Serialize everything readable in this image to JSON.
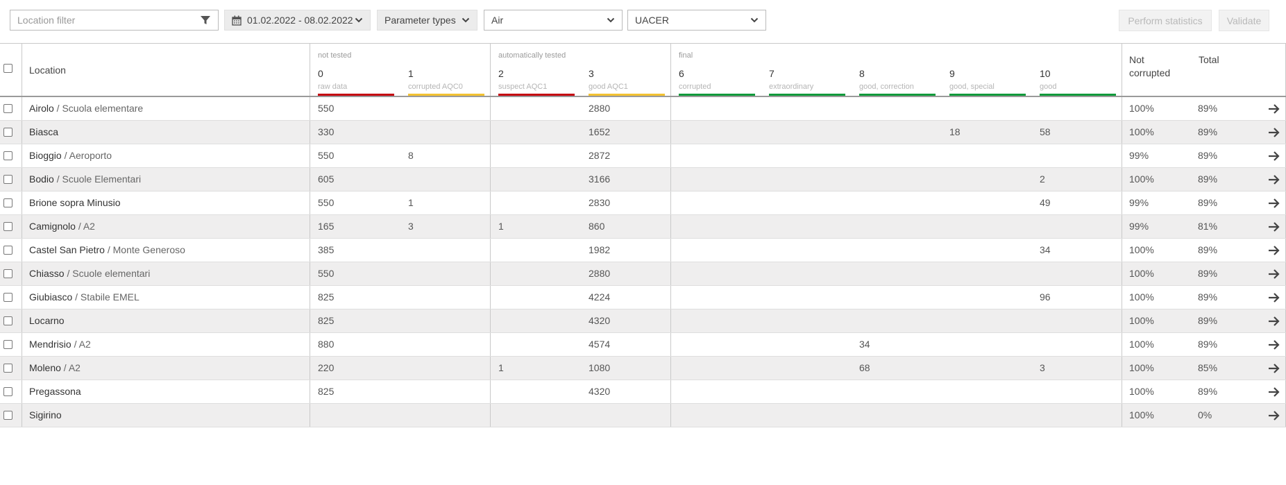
{
  "toolbar": {
    "location_filter_placeholder": "Location filter",
    "date_range": "01.02.2022 - 08.02.2022",
    "parameter_types": "Parameter types",
    "medium": "Air",
    "parameter": "UACER",
    "perform_statistics": "Perform statistics",
    "validate": "Validate"
  },
  "header": {
    "location": "Location",
    "groups": {
      "not_tested": "not tested",
      "auto_tested": "automatically tested",
      "final": "final"
    },
    "classes": [
      {
        "num": "0",
        "label": "raw data",
        "color": "#c4000f"
      },
      {
        "num": "1",
        "label": "corrupted AQC0",
        "color": "#f3c231"
      },
      {
        "num": "2",
        "label": "suspect AQC1",
        "color": "#c4000f"
      },
      {
        "num": "3",
        "label": "good AQC1",
        "color": "#f3c231"
      },
      {
        "num": "6",
        "label": "corrupted",
        "color": "#0f9a3a"
      },
      {
        "num": "7",
        "label": "extraordinary",
        "color": "#0f9a3a"
      },
      {
        "num": "8",
        "label": "good, correction",
        "color": "#0f9a3a"
      },
      {
        "num": "9",
        "label": "good, special",
        "color": "#0f9a3a"
      },
      {
        "num": "10",
        "label": "good",
        "color": "#0f9a3a"
      }
    ],
    "not_corrupted": "Not corrupted",
    "not_corrupted_l1": "Not",
    "not_corrupted_l2": "corrupted",
    "total": "Total"
  },
  "rows": [
    {
      "name": "Airolo",
      "sub": "Scuola elementare",
      "c": [
        "550",
        "",
        "",
        "2880",
        "",
        "",
        "",
        "",
        ""
      ],
      "nc": "100%",
      "total": "89%"
    },
    {
      "name": "Biasca",
      "sub": "",
      "c": [
        "330",
        "",
        "",
        "1652",
        "",
        "",
        "",
        "18",
        "58"
      ],
      "nc": "100%",
      "total": "89%"
    },
    {
      "name": "Bioggio",
      "sub": "Aeroporto",
      "c": [
        "550",
        "8",
        "",
        "2872",
        "",
        "",
        "",
        "",
        ""
      ],
      "nc": "99%",
      "total": "89%"
    },
    {
      "name": "Bodio",
      "sub": "Scuole Elementari",
      "c": [
        "605",
        "",
        "",
        "3166",
        "",
        "",
        "",
        "",
        "2"
      ],
      "nc": "100%",
      "total": "89%"
    },
    {
      "name": "Brione sopra Minusio",
      "sub": "",
      "c": [
        "550",
        "1",
        "",
        "2830",
        "",
        "",
        "",
        "",
        "49"
      ],
      "nc": "99%",
      "total": "89%"
    },
    {
      "name": "Camignolo",
      "sub": "A2",
      "c": [
        "165",
        "3",
        "1",
        "860",
        "",
        "",
        "",
        "",
        ""
      ],
      "nc": "99%",
      "total": "81%"
    },
    {
      "name": "Castel San Pietro",
      "sub": "Monte Generoso",
      "c": [
        "385",
        "",
        "",
        "1982",
        "",
        "",
        "",
        "",
        "34"
      ],
      "nc": "100%",
      "total": "89%"
    },
    {
      "name": "Chiasso",
      "sub": "Scuole elementari",
      "c": [
        "550",
        "",
        "",
        "2880",
        "",
        "",
        "",
        "",
        ""
      ],
      "nc": "100%",
      "total": "89%"
    },
    {
      "name": "Giubiasco",
      "sub": "Stabile EMEL",
      "c": [
        "825",
        "",
        "",
        "4224",
        "",
        "",
        "",
        "",
        "96"
      ],
      "nc": "100%",
      "total": "89%"
    },
    {
      "name": "Locarno",
      "sub": "",
      "c": [
        "825",
        "",
        "",
        "4320",
        "",
        "",
        "",
        "",
        ""
      ],
      "nc": "100%",
      "total": "89%"
    },
    {
      "name": "Mendrisio",
      "sub": "A2",
      "c": [
        "880",
        "",
        "",
        "4574",
        "",
        "",
        "34",
        "",
        ""
      ],
      "nc": "100%",
      "total": "89%"
    },
    {
      "name": "Moleno",
      "sub": "A2",
      "c": [
        "220",
        "",
        "1",
        "1080",
        "",
        "",
        "68",
        "",
        "3"
      ],
      "nc": "100%",
      "total": "85%"
    },
    {
      "name": "Pregassona",
      "sub": "",
      "c": [
        "825",
        "",
        "",
        "4320",
        "",
        "",
        "",
        "",
        ""
      ],
      "nc": "100%",
      "total": "89%"
    },
    {
      "name": "Sigirino",
      "sub": "",
      "c": [
        "",
        "",
        "",
        "",
        "",
        "",
        "",
        "",
        ""
      ],
      "nc": "100%",
      "total": "0%"
    }
  ]
}
